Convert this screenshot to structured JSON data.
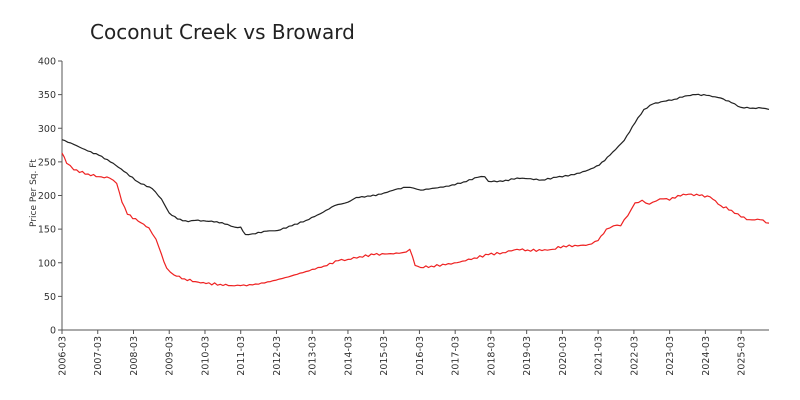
{
  "chart_data": {
    "type": "line",
    "title": "Coconut Creek vs Broward",
    "xlabel": "",
    "ylabel": "Price Per Sq. Ft",
    "ylim": [
      0,
      400
    ],
    "xlim": [
      2006.17,
      2025.95
    ],
    "yticks": [
      0,
      50,
      100,
      150,
      200,
      250,
      300,
      350,
      400
    ],
    "xticks": [
      {
        "label": "2006-03",
        "t": 2006.17
      },
      {
        "label": "2007-03",
        "t": 2007.17
      },
      {
        "label": "2008-03",
        "t": 2008.17
      },
      {
        "label": "2009-03",
        "t": 2009.17
      },
      {
        "label": "2010-03",
        "t": 2010.17
      },
      {
        "label": "2011-03",
        "t": 2011.17
      },
      {
        "label": "2012-03",
        "t": 2012.17
      },
      {
        "label": "2013-03",
        "t": 2013.17
      },
      {
        "label": "2014-03",
        "t": 2014.17
      },
      {
        "label": "2015-03",
        "t": 2015.17
      },
      {
        "label": "2016-03",
        "t": 2016.17
      },
      {
        "label": "2017-03",
        "t": 2017.17
      },
      {
        "label": "2018-03",
        "t": 2018.17
      },
      {
        "label": "2019-03",
        "t": 2019.17
      },
      {
        "label": "2020-03",
        "t": 2020.17
      },
      {
        "label": "2021-03",
        "t": 2021.17
      },
      {
        "label": "2022-03",
        "t": 2022.17
      },
      {
        "label": "2023-03",
        "t": 2023.17
      },
      {
        "label": "2024-03",
        "t": 2024.17
      },
      {
        "label": "2025-03",
        "t": 2025.17
      }
    ],
    "grid": false,
    "series": [
      {
        "name": "Broward",
        "color": "#222222",
        "points": [
          [
            2006.17,
            283
          ],
          [
            2006.5,
            276
          ],
          [
            2006.9,
            266
          ],
          [
            2007.2,
            260
          ],
          [
            2007.6,
            248
          ],
          [
            2007.9,
            236
          ],
          [
            2008.3,
            220
          ],
          [
            2008.7,
            210
          ],
          [
            2008.95,
            195
          ],
          [
            2009.17,
            174
          ],
          [
            2009.4,
            165
          ],
          [
            2009.7,
            161
          ],
          [
            2009.9,
            163
          ],
          [
            2010.2,
            162
          ],
          [
            2010.5,
            161
          ],
          [
            2010.8,
            157
          ],
          [
            2011.0,
            153
          ],
          [
            2011.17,
            153
          ],
          [
            2011.3,
            142
          ],
          [
            2011.5,
            143
          ],
          [
            2011.9,
            147
          ],
          [
            2012.2,
            148
          ],
          [
            2012.6,
            155
          ],
          [
            2013.0,
            163
          ],
          [
            2013.4,
            173
          ],
          [
            2013.8,
            185
          ],
          [
            2014.17,
            190
          ],
          [
            2014.4,
            197
          ],
          [
            2014.8,
            199
          ],
          [
            2015.1,
            202
          ],
          [
            2015.5,
            209
          ],
          [
            2015.8,
            212
          ],
          [
            2016.0,
            211
          ],
          [
            2016.2,
            208
          ],
          [
            2016.6,
            211
          ],
          [
            2017.0,
            214
          ],
          [
            2017.4,
            220
          ],
          [
            2017.8,
            227
          ],
          [
            2018.0,
            228
          ],
          [
            2018.1,
            221
          ],
          [
            2018.5,
            221
          ],
          [
            2018.9,
            226
          ],
          [
            2019.2,
            225
          ],
          [
            2019.6,
            223
          ],
          [
            2020.0,
            227
          ],
          [
            2020.5,
            231
          ],
          [
            2020.9,
            238
          ],
          [
            2021.2,
            245
          ],
          [
            2021.5,
            260
          ],
          [
            2021.9,
            282
          ],
          [
            2022.2,
            308
          ],
          [
            2022.45,
            328
          ],
          [
            2022.7,
            336
          ],
          [
            2023.0,
            340
          ],
          [
            2023.3,
            343
          ],
          [
            2023.6,
            348
          ],
          [
            2023.9,
            350
          ],
          [
            2024.2,
            349
          ],
          [
            2024.6,
            345
          ],
          [
            2024.9,
            338
          ],
          [
            2025.17,
            331
          ],
          [
            2025.5,
            330
          ],
          [
            2025.75,
            330
          ],
          [
            2025.95,
            328
          ]
        ]
      },
      {
        "name": "Coconut Creek",
        "color": "#ee2222",
        "points": [
          [
            2006.17,
            263
          ],
          [
            2006.3,
            248
          ],
          [
            2006.5,
            238
          ],
          [
            2006.9,
            232
          ],
          [
            2007.2,
            228
          ],
          [
            2007.5,
            226
          ],
          [
            2007.7,
            218
          ],
          [
            2007.85,
            190
          ],
          [
            2008.0,
            172
          ],
          [
            2008.3,
            162
          ],
          [
            2008.6,
            152
          ],
          [
            2008.8,
            135
          ],
          [
            2008.95,
            113
          ],
          [
            2009.1,
            92
          ],
          [
            2009.3,
            82
          ],
          [
            2009.6,
            76
          ],
          [
            2009.9,
            72
          ],
          [
            2010.2,
            69
          ],
          [
            2010.6,
            68
          ],
          [
            2010.9,
            66
          ],
          [
            2011.17,
            66
          ],
          [
            2011.5,
            67
          ],
          [
            2012.0,
            72
          ],
          [
            2012.5,
            79
          ],
          [
            2013.0,
            87
          ],
          [
            2013.5,
            95
          ],
          [
            2013.9,
            103
          ],
          [
            2014.17,
            105
          ],
          [
            2014.5,
            109
          ],
          [
            2014.9,
            112
          ],
          [
            2015.2,
            113
          ],
          [
            2015.6,
            114
          ],
          [
            2015.8,
            116
          ],
          [
            2015.9,
            120
          ],
          [
            2016.05,
            96
          ],
          [
            2016.2,
            93
          ],
          [
            2016.5,
            95
          ],
          [
            2016.9,
            97
          ],
          [
            2017.3,
            101
          ],
          [
            2017.7,
            107
          ],
          [
            2018.1,
            112
          ],
          [
            2018.5,
            115
          ],
          [
            2018.9,
            120
          ],
          [
            2019.2,
            119
          ],
          [
            2019.6,
            118
          ],
          [
            2019.9,
            120
          ],
          [
            2020.2,
            125
          ],
          [
            2020.6,
            125
          ],
          [
            2020.9,
            127
          ],
          [
            2021.17,
            133
          ],
          [
            2021.4,
            150
          ],
          [
            2021.6,
            155
          ],
          [
            2021.8,
            155
          ],
          [
            2022.0,
            170
          ],
          [
            2022.2,
            189
          ],
          [
            2022.4,
            193
          ],
          [
            2022.6,
            187
          ],
          [
            2022.8,
            192
          ],
          [
            2023.0,
            195
          ],
          [
            2023.17,
            193
          ],
          [
            2023.4,
            200
          ],
          [
            2023.7,
            202
          ],
          [
            2024.0,
            200
          ],
          [
            2024.3,
            198
          ],
          [
            2024.6,
            185
          ],
          [
            2024.9,
            178
          ],
          [
            2025.17,
            168
          ],
          [
            2025.4,
            164
          ],
          [
            2025.7,
            164
          ],
          [
            2025.95,
            159
          ]
        ]
      }
    ]
  }
}
